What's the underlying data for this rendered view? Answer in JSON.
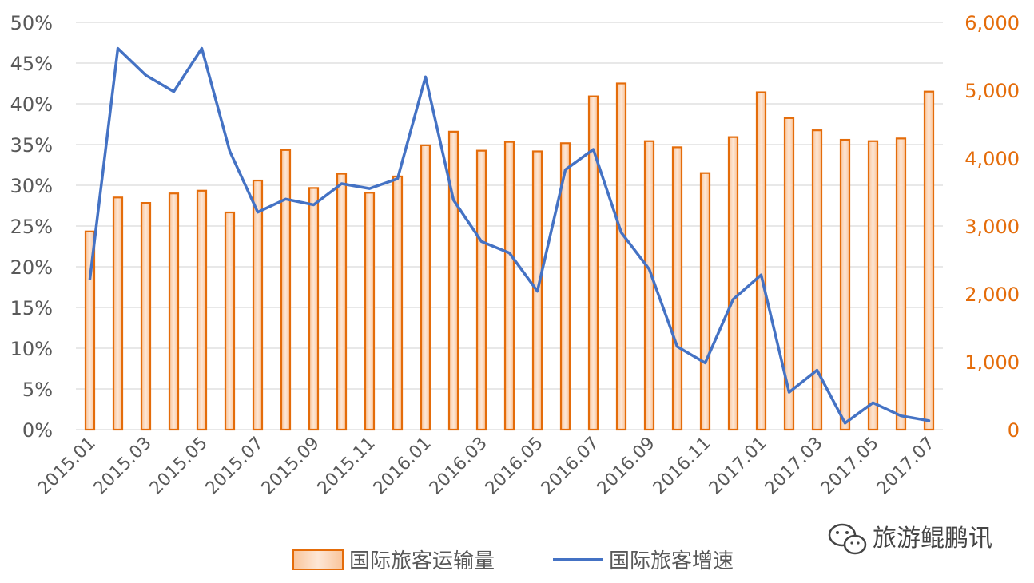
{
  "chart_data": {
    "type": "bar+line",
    "x": [
      "2015.01",
      "2015.02",
      "2015.03",
      "2015.04",
      "2015.05",
      "2015.06",
      "2015.07",
      "2015.08",
      "2015.09",
      "2015.10",
      "2015.11",
      "2015.12",
      "2016.01",
      "2016.02",
      "2016.03",
      "2016.04",
      "2016.05",
      "2016.06",
      "2016.07",
      "2016.08",
      "2016.09",
      "2016.10",
      "2016.11",
      "2016.12",
      "2017.01",
      "2017.02",
      "2017.03",
      "2017.04",
      "2017.05",
      "2017.06",
      "2017.07"
    ],
    "x_tick_labels": [
      "2015.01",
      "2015.03",
      "2015.05",
      "2015.07",
      "2015.09",
      "2015.11",
      "2016.01",
      "2016.03",
      "2016.05",
      "2016.07",
      "2016.09",
      "2016.11",
      "2017.01",
      "2017.03",
      "2017.05",
      "2017.07"
    ],
    "series": [
      {
        "name": "国际旅客运输量",
        "kind": "bar",
        "axis": "right",
        "color": "#E46C0A",
        "values": [
          2920,
          3420,
          3340,
          3480,
          3520,
          3200,
          3670,
          4120,
          3560,
          3770,
          3490,
          3730,
          4190,
          4390,
          4110,
          4240,
          4100,
          4220,
          4910,
          5100,
          4250,
          4160,
          3780,
          4310,
          4970,
          4590,
          4410,
          4270,
          4250,
          4290,
          4980
        ]
      },
      {
        "name": "国际旅客增速",
        "kind": "line",
        "axis": "left",
        "color": "#4472C4",
        "values": [
          18.5,
          46.8,
          43.5,
          41.5,
          46.8,
          34.2,
          26.7,
          28.3,
          27.6,
          30.2,
          29.6,
          30.8,
          43.3,
          28.2,
          23.1,
          21.7,
          17.0,
          31.9,
          34.4,
          24.2,
          19.7,
          10.2,
          8.2,
          16.0,
          19.0,
          4.6,
          7.3,
          0.8,
          3.3,
          1.7,
          1.1
        ]
      }
    ],
    "y_left": {
      "min": 0,
      "max": 50,
      "step": 5,
      "tick_labels": [
        "0%",
        "5%",
        "10%",
        "15%",
        "20%",
        "25%",
        "30%",
        "35%",
        "40%",
        "45%",
        "50%"
      ]
    },
    "y_right": {
      "min": 0,
      "max": 6000,
      "step": 1000,
      "tick_labels": [
        "0",
        "1,000",
        "2,000",
        "3,000",
        "4,000",
        "5,000",
        "6,000"
      ]
    },
    "grid": true,
    "legend_position": "bottom",
    "legend": [
      {
        "label": "国际旅客运输量",
        "kind": "bar"
      },
      {
        "label": "国际旅客增速",
        "kind": "line"
      }
    ]
  },
  "watermark": {
    "text": "旅游鲲鹏讯",
    "icon": "wechat-icon"
  },
  "colors": {
    "bar_fill": "#FBD2B4",
    "bar_stroke": "#E46C0A",
    "line": "#4472C4",
    "grid": "#D9D9D9",
    "text": "#595959",
    "right_axis_text": "#E46C0A"
  }
}
